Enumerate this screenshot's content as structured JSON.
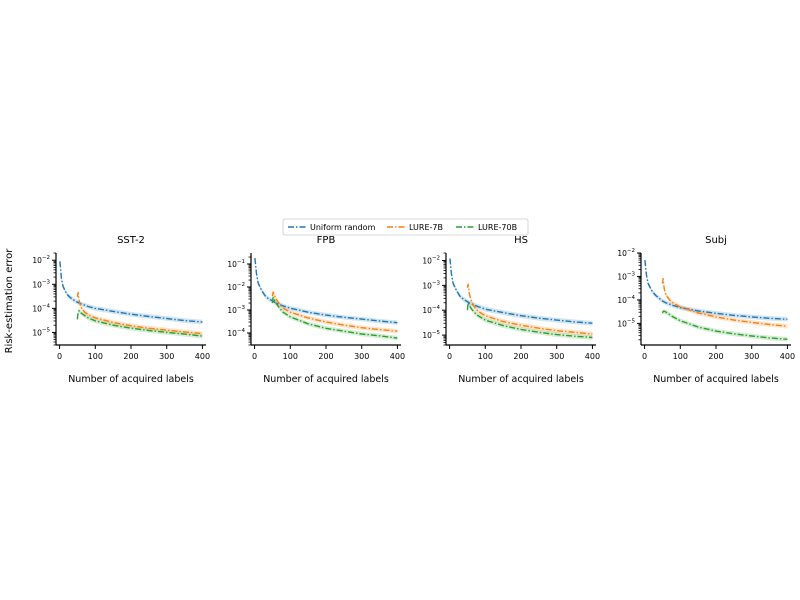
{
  "figure": {
    "ylabel": "Risk-estimation error",
    "legend": {
      "placement": "top-center",
      "entries": [
        {
          "name": "Uniform random",
          "color": "#1f77b4"
        },
        {
          "name": "LURE-7B",
          "color": "#ff7f0e"
        },
        {
          "name": "LURE-70B",
          "color": "#2ca02c"
        }
      ]
    }
  },
  "chart_data": [
    {
      "type": "line",
      "title": "SST-2",
      "xlabel": "Number of acquired labels",
      "ylabel": "Risk-estimation error",
      "yscale": "log",
      "xlim": [
        -10,
        410
      ],
      "ylim": [
        3e-06,
        0.02
      ],
      "xticks": [
        0,
        100,
        200,
        300,
        400
      ],
      "yticks": [
        {
          "exp": -5,
          "value": 1e-05
        },
        {
          "exp": -4,
          "value": 0.0001
        },
        {
          "exp": -3,
          "value": 0.001
        },
        {
          "exp": -2,
          "value": 0.01
        }
      ],
      "grid": false,
      "series": [
        {
          "name": "Uniform random",
          "color": "#1f77b4",
          "x": [
            1,
            5,
            10,
            20,
            30,
            40,
            50,
            60,
            80,
            100,
            150,
            200,
            250,
            300,
            350,
            400
          ],
          "y": [
            0.009,
            0.0018,
            0.0008,
            0.0004,
            0.00028,
            0.00022,
            0.00018,
            0.000155,
            0.00012,
            0.0001,
            7.5e-05,
            5.7e-05,
            4.6e-05,
            3.8e-05,
            3.1e-05,
            2.7e-05
          ]
        },
        {
          "name": "LURE-7B",
          "color": "#ff7f0e",
          "x": [
            50,
            52,
            55,
            60,
            70,
            80,
            100,
            150,
            200,
            250,
            300,
            350,
            400
          ],
          "y": [
            0.0003,
            0.00045,
            0.0002,
            0.00011,
            7e-05,
            5.5e-05,
            4e-05,
            2.6e-05,
            1.9e-05,
            1.5e-05,
            1.25e-05,
            1.05e-05,
            9e-06
          ]
        },
        {
          "name": "LURE-70B",
          "color": "#2ca02c",
          "x": [
            50,
            52,
            55,
            60,
            70,
            80,
            100,
            150,
            200,
            250,
            300,
            350,
            400
          ],
          "y": [
            3.5e-05,
            7e-05,
            8e-05,
            6.5e-05,
            5e-05,
            4e-05,
            3e-05,
            2e-05,
            1.5e-05,
            1.2e-05,
            1e-05,
            8.5e-06,
            7e-06
          ]
        }
      ]
    },
    {
      "type": "line",
      "title": "FPB",
      "xlabel": "Number of acquired labels",
      "ylabel": "",
      "yscale": "log",
      "xlim": [
        -10,
        410
      ],
      "ylim": [
        3e-05,
        0.3
      ],
      "xticks": [
        0,
        100,
        200,
        300,
        400
      ],
      "yticks": [
        {
          "exp": -4,
          "value": 0.0001
        },
        {
          "exp": -3,
          "value": 0.001
        },
        {
          "exp": -2,
          "value": 0.01
        },
        {
          "exp": -1,
          "value": 0.1
        }
      ],
      "grid": false,
      "series": [
        {
          "name": "Uniform random",
          "color": "#1f77b4",
          "x": [
            1,
            5,
            10,
            20,
            30,
            40,
            50,
            60,
            80,
            100,
            150,
            200,
            250,
            300,
            350,
            400
          ],
          "y": [
            0.18,
            0.04,
            0.015,
            0.007,
            0.004,
            0.003,
            0.0025,
            0.002,
            0.0015,
            0.0012,
            0.0008,
            0.0006,
            0.00048,
            0.0004,
            0.00033,
            0.00028
          ]
        },
        {
          "name": "LURE-7B",
          "color": "#ff7f0e",
          "x": [
            50,
            52,
            55,
            60,
            70,
            80,
            100,
            150,
            200,
            250,
            300,
            350,
            400
          ],
          "y": [
            0.004,
            0.006,
            0.0045,
            0.003,
            0.0018,
            0.0012,
            0.0008,
            0.00045,
            0.0003,
            0.00022,
            0.00017,
            0.00014,
            0.00012
          ]
        },
        {
          "name": "LURE-70B",
          "color": "#2ca02c",
          "x": [
            50,
            52,
            55,
            60,
            70,
            80,
            100,
            150,
            200,
            250,
            300,
            350,
            400
          ],
          "y": [
            0.002,
            0.0035,
            0.0028,
            0.002,
            0.0012,
            0.0008,
            0.0005,
            0.00025,
            0.00016,
            0.00012,
            9e-05,
            7.5e-05,
            6e-05
          ]
        }
      ]
    },
    {
      "type": "line",
      "title": "HS",
      "xlabel": "Number of acquired labels",
      "ylabel": "",
      "yscale": "log",
      "xlim": [
        -10,
        410
      ],
      "ylim": [
        4e-06,
        0.02
      ],
      "xticks": [
        0,
        100,
        200,
        300,
        400
      ],
      "yticks": [
        {
          "exp": -5,
          "value": 1e-05
        },
        {
          "exp": -4,
          "value": 0.0001
        },
        {
          "exp": -3,
          "value": 0.001
        },
        {
          "exp": -2,
          "value": 0.01
        }
      ],
      "grid": false,
      "series": [
        {
          "name": "Uniform random",
          "color": "#1f77b4",
          "x": [
            1,
            5,
            10,
            20,
            30,
            40,
            50,
            60,
            80,
            100,
            150,
            200,
            250,
            300,
            350,
            400
          ],
          "y": [
            0.012,
            0.003,
            0.0012,
            0.0006,
            0.00035,
            0.00027,
            0.00022,
            0.00018,
            0.00014,
            0.00011,
            8e-05,
            6e-05,
            4.8e-05,
            4e-05,
            3.4e-05,
            3e-05
          ]
        },
        {
          "name": "LURE-7B",
          "color": "#ff7f0e",
          "x": [
            50,
            52,
            55,
            60,
            70,
            80,
            100,
            150,
            200,
            250,
            300,
            350,
            400
          ],
          "y": [
            0.0008,
            0.0011,
            0.0005,
            0.00025,
            0.00013,
            9e-05,
            6e-05,
            3.5e-05,
            2.5e-05,
            1.9e-05,
            1.5e-05,
            1.3e-05,
            1.1e-05
          ]
        },
        {
          "name": "LURE-70B",
          "color": "#2ca02c",
          "x": [
            50,
            52,
            55,
            60,
            70,
            80,
            100,
            150,
            200,
            250,
            300,
            350,
            400
          ],
          "y": [
            0.0001,
            0.0002,
            0.00016,
            0.00012,
            8e-05,
            6e-05,
            4e-05,
            2.4e-05,
            1.7e-05,
            1.3e-05,
            1.05e-05,
            9e-06,
            8e-06
          ]
        }
      ]
    },
    {
      "type": "line",
      "title": "Subj",
      "xlabel": "Number of acquired labels",
      "ylabel": "",
      "yscale": "log",
      "xlim": [
        -10,
        410
      ],
      "ylim": [
        1.2e-06,
        0.01
      ],
      "xticks": [
        0,
        100,
        200,
        300,
        400
      ],
      "yticks": [
        {
          "exp": -5,
          "value": 1e-05
        },
        {
          "exp": -4,
          "value": 0.0001
        },
        {
          "exp": -3,
          "value": 0.001
        },
        {
          "exp": -2,
          "value": 0.01
        }
      ],
      "grid": false,
      "series": [
        {
          "name": "Uniform random",
          "color": "#1f77b4",
          "x": [
            1,
            5,
            10,
            20,
            30,
            40,
            50,
            60,
            80,
            100,
            150,
            200,
            250,
            300,
            350,
            400
          ],
          "y": [
            0.005,
            0.0012,
            0.0005,
            0.00025,
            0.00016,
            0.00012,
            9e-05,
            7.5e-05,
            5.8e-05,
            4.7e-05,
            3.4e-05,
            2.7e-05,
            2.2e-05,
            1.9e-05,
            1.65e-05,
            1.5e-05
          ]
        },
        {
          "name": "LURE-7B",
          "color": "#ff7f0e",
          "x": [
            50,
            52,
            55,
            60,
            70,
            80,
            100,
            150,
            200,
            250,
            300,
            350,
            400
          ],
          "y": [
            0.0005,
            0.0008,
            0.0003,
            0.00016,
            0.0001,
            7.5e-05,
            5e-05,
            2.8e-05,
            1.9e-05,
            1.4e-05,
            1.1e-05,
            9e-06,
            7.5e-06
          ]
        },
        {
          "name": "LURE-70B",
          "color": "#2ca02c",
          "x": [
            50,
            52,
            55,
            60,
            70,
            80,
            100,
            150,
            200,
            250,
            300,
            350,
            400
          ],
          "y": [
            2.8e-05,
            3.2e-05,
            3.3e-05,
            3e-05,
            2.4e-05,
            1.9e-05,
            1.3e-05,
            7e-06,
            4.7e-06,
            3.6e-06,
            2.9e-06,
            2.4e-06,
            2.1e-06
          ]
        }
      ]
    }
  ]
}
